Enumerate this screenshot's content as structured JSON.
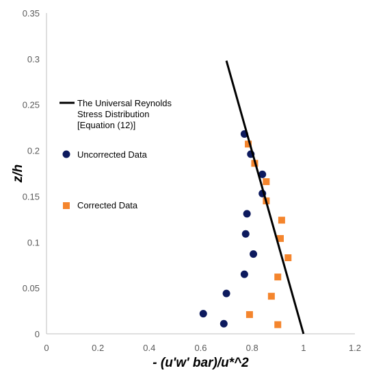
{
  "chart_data": {
    "type": "scatter",
    "xlabel": "- (u'w' bar)/u*^2",
    "ylabel": "z/h",
    "xlim": [
      0,
      1.2
    ],
    "ylim": [
      0,
      0.35
    ],
    "xticks": [
      "0",
      "0.2",
      "0.4",
      "0.6",
      "0.8",
      "1",
      "1.2"
    ],
    "yticks": [
      "0",
      "0.05",
      "0.1",
      "0.15",
      "0.2",
      "0.25",
      "0.3",
      "0.35"
    ],
    "grid": false,
    "legend_position": "left-inside",
    "series": [
      {
        "name": "Uncorrected Data",
        "marker": "circle",
        "color": "#0d1a5e",
        "points": [
          {
            "x": 0.77,
            "y": 0.218
          },
          {
            "x": 0.795,
            "y": 0.196
          },
          {
            "x": 0.84,
            "y": 0.174
          },
          {
            "x": 0.84,
            "y": 0.153
          },
          {
            "x": 0.78,
            "y": 0.131
          },
          {
            "x": 0.775,
            "y": 0.109
          },
          {
            "x": 0.805,
            "y": 0.087
          },
          {
            "x": 0.77,
            "y": 0.065
          },
          {
            "x": 0.7,
            "y": 0.044
          },
          {
            "x": 0.61,
            "y": 0.022
          },
          {
            "x": 0.69,
            "y": 0.011
          }
        ]
      },
      {
        "name": "Corrected Data",
        "marker": "square",
        "color": "#f4852d",
        "points": [
          {
            "x": 0.785,
            "y": 0.207
          },
          {
            "x": 0.81,
            "y": 0.186
          },
          {
            "x": 0.855,
            "y": 0.166
          },
          {
            "x": 0.855,
            "y": 0.145
          },
          {
            "x": 0.915,
            "y": 0.124
          },
          {
            "x": 0.91,
            "y": 0.104
          },
          {
            "x": 0.94,
            "y": 0.083
          },
          {
            "x": 0.9,
            "y": 0.062
          },
          {
            "x": 0.875,
            "y": 0.041
          },
          {
            "x": 0.79,
            "y": 0.021
          },
          {
            "x": 0.9,
            "y": 0.01
          }
        ]
      },
      {
        "name": "The Universal Reynolds Stress Distribution [Equation (12)]",
        "legend_lines": [
          "The Universal Reynolds",
          "Stress Distribution",
          "[Equation (12)]"
        ],
        "marker": "line",
        "color": "#000000",
        "points": [
          {
            "x": 0.7,
            "y": 0.298
          },
          {
            "x": 1.0,
            "y": 0.0
          }
        ]
      }
    ]
  }
}
